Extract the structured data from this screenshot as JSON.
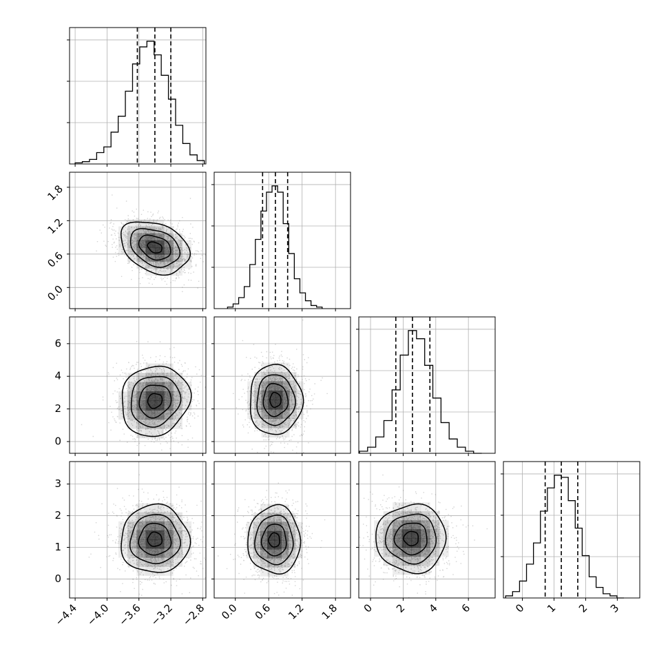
{
  "chart_data": {
    "type": "corner",
    "title": "",
    "params": [
      {
        "range": [
          -4.47,
          -2.76
        ],
        "ticks": [
          -4.4,
          -4.0,
          -3.6,
          -3.2,
          -2.8
        ],
        "tick_labels": [
          "−4.4",
          "−4.0",
          "−3.6",
          "−3.2",
          "−2.8"
        ],
        "quantiles": [
          -3.62,
          -3.4,
          -3.2
        ]
      },
      {
        "range": [
          -0.38,
          2.07
        ],
        "ticks": [
          0.0,
          0.6,
          1.2,
          1.8
        ],
        "x_tick_labels": [
          "0.0",
          "0.6",
          "1.2",
          "1.8"
        ],
        "y_tick_labels": [
          "0.0",
          "0.6",
          "1.2",
          "1.8"
        ],
        "quantiles": [
          0.49,
          0.72,
          0.94
        ]
      },
      {
        "range": [
          -0.72,
          7.64
        ],
        "ticks": [
          0,
          2,
          4,
          6
        ],
        "tick_labels": [
          "0",
          "2",
          "4",
          "6"
        ],
        "quantiles": [
          1.55,
          2.57,
          3.64
        ]
      },
      {
        "range": [
          -0.6,
          3.71
        ],
        "ticks": [
          0,
          1,
          2,
          3
        ],
        "tick_labels": [
          "0",
          "1",
          "2",
          "3"
        ],
        "quantiles": [
          0.72,
          1.23,
          1.75
        ]
      }
    ],
    "marginals": [
      {
        "param": 0,
        "bins": [
          -4.4,
          -4.31,
          -4.22,
          -4.13,
          -4.04,
          -3.95,
          -3.86,
          -3.77,
          -3.68,
          -3.59,
          -3.5,
          -3.41,
          -3.32,
          -3.23,
          -3.14,
          -3.05,
          -2.96,
          -2.87,
          -2.78
        ],
        "counts": [
          1,
          2,
          4,
          10,
          15,
          28,
          42,
          64,
          88,
          103,
          108,
          96,
          78,
          57,
          34,
          18,
          8,
          3
        ]
      },
      {
        "param": 1,
        "bins": [
          -0.14,
          -0.04,
          0.06,
          0.16,
          0.26,
          0.36,
          0.46,
          0.56,
          0.66,
          0.76,
          0.86,
          0.96,
          1.06,
          1.16,
          1.26,
          1.36,
          1.46,
          1.56
        ],
        "counts": [
          1,
          3,
          7,
          14,
          28,
          44,
          62,
          74,
          78,
          74,
          54,
          35,
          19,
          10,
          5,
          2,
          1
        ]
      },
      {
        "param": 2,
        "bins": [
          -0.68,
          -0.18,
          0.32,
          0.82,
          1.32,
          1.82,
          2.32,
          2.82,
          3.32,
          3.82,
          4.32,
          4.82,
          5.32,
          5.82,
          6.32,
          6.82
        ],
        "counts": [
          1,
          3,
          8,
          16,
          31,
          48,
          60,
          56,
          43,
          27,
          15,
          7,
          3,
          1,
          0
        ]
      },
      {
        "param": 3,
        "bins": [
          -0.53,
          -0.31,
          -0.09,
          0.13,
          0.35,
          0.57,
          0.79,
          1.01,
          1.23,
          1.45,
          1.67,
          1.89,
          2.11,
          2.33,
          2.55,
          2.77,
          2.99,
          3.21
        ],
        "counts": [
          1,
          3,
          8,
          16,
          26,
          41,
          52,
          58,
          57,
          46,
          33,
          20,
          10,
          5,
          2,
          1,
          0
        ]
      }
    ],
    "joint": [
      {
        "x_param": 0,
        "y_param": 1,
        "center": [
          -3.4,
          0.72
        ],
        "sd": [
          0.2,
          0.22
        ],
        "rho": -0.3
      },
      {
        "x_param": 0,
        "y_param": 2,
        "center": [
          -3.4,
          2.5
        ],
        "sd": [
          0.2,
          1.0
        ],
        "rho": 0.1
      },
      {
        "x_param": 1,
        "y_param": 2,
        "center": [
          0.72,
          2.55
        ],
        "sd": [
          0.22,
          1.0
        ],
        "rho": 0.0
      },
      {
        "x_param": 0,
        "y_param": 3,
        "center": [
          -3.4,
          1.25
        ],
        "sd": [
          0.2,
          0.5
        ],
        "rho": 0.0
      },
      {
        "x_param": 1,
        "y_param": 3,
        "center": [
          0.7,
          1.23
        ],
        "sd": [
          0.22,
          0.5
        ],
        "rho": 0.0
      },
      {
        "x_param": 2,
        "y_param": 3,
        "center": [
          2.5,
          1.28
        ],
        "sd": [
          1.0,
          0.5
        ],
        "rho": 0.0
      }
    ],
    "grid": true,
    "colors": {
      "line": "#000000",
      "grid": "#b0b0b0",
      "points": "#7f7f7f",
      "density": "#000000"
    }
  }
}
